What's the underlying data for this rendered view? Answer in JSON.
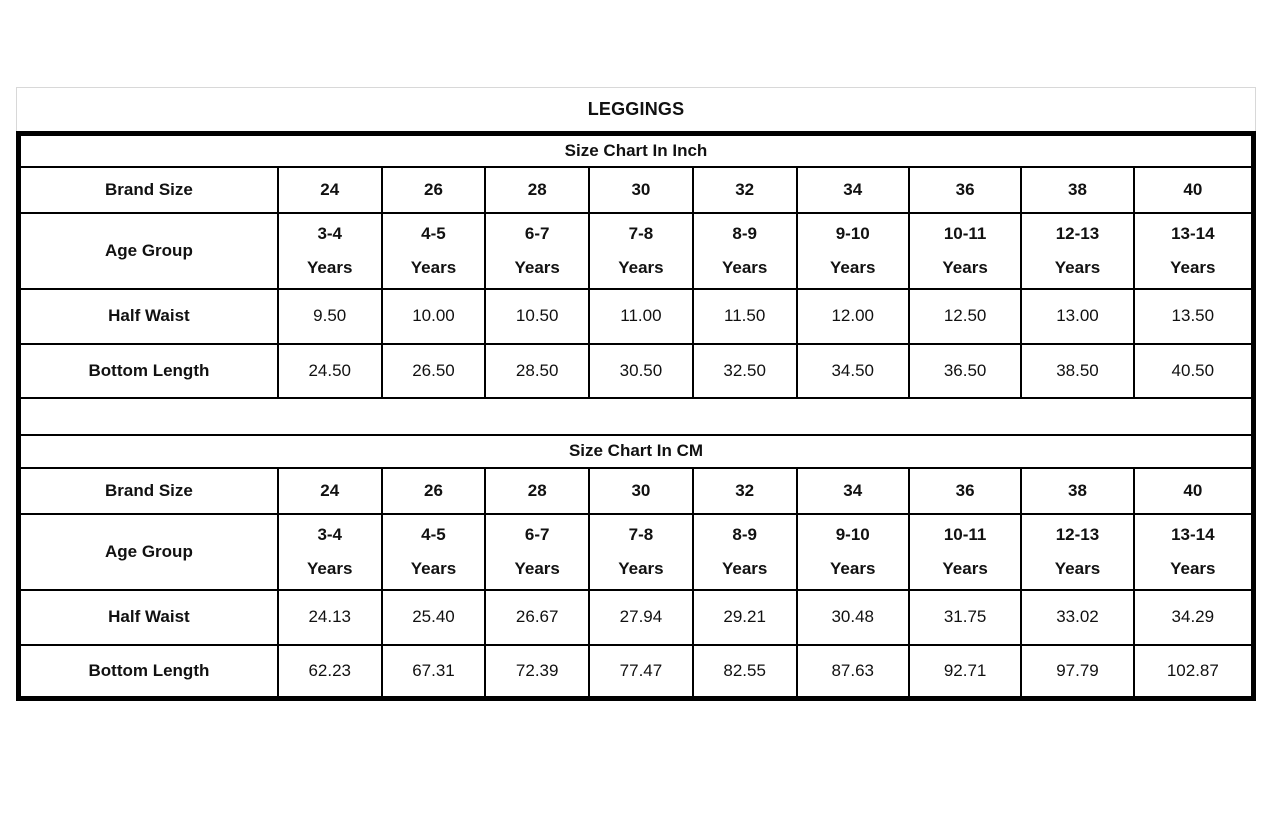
{
  "page_title": "LEGGINGS",
  "colors": {
    "background": "#ffffff",
    "text": "#111111",
    "table_border_thick": "#000000",
    "table_border_thin": "#000000",
    "title_box_border": "#d8d8d8"
  },
  "sections": [
    {
      "title": "Size Chart In Inch",
      "rows": [
        {
          "kind": "brand-size",
          "label": "Brand Size",
          "cells": [
            "24",
            "26",
            "28",
            "30",
            "32",
            "34",
            "36",
            "38",
            "40"
          ]
        },
        {
          "kind": "age-group",
          "label": "Age Group",
          "cells": [
            "3-4\nYears",
            "4-5\nYears",
            "6-7\nYears",
            "7-8\nYears",
            "8-9\nYears",
            "9-10\nYears",
            "10-11\nYears",
            "12-13\nYears",
            "13-14\nYears"
          ]
        },
        {
          "kind": "half-waist",
          "label": "Half Waist",
          "cells": [
            "9.50",
            "10.00",
            "10.50",
            "11.00",
            "11.50",
            "12.00",
            "12.50",
            "13.00",
            "13.50"
          ]
        },
        {
          "kind": "bottom-length",
          "label": "Bottom Length",
          "cells": [
            "24.50",
            "26.50",
            "28.50",
            "30.50",
            "32.50",
            "34.50",
            "36.50",
            "38.50",
            "40.50"
          ]
        }
      ]
    },
    {
      "title": "Size Chart In CM",
      "rows": [
        {
          "kind": "brand-size",
          "label": "Brand Size",
          "cells": [
            "24",
            "26",
            "28",
            "30",
            "32",
            "34",
            "36",
            "38",
            "40"
          ]
        },
        {
          "kind": "age-group",
          "label": "Age Group",
          "cells": [
            "3-4\nYears",
            "4-5\nYears",
            "6-7\nYears",
            "7-8\nYears",
            "8-9\nYears",
            "9-10\nYears",
            "10-11\nYears",
            "12-13\nYears",
            "13-14\nYears"
          ]
        },
        {
          "kind": "half-waist",
          "label": "Half Waist",
          "cells": [
            "24.13",
            "25.40",
            "26.67",
            "27.94",
            "29.21",
            "30.48",
            "31.75",
            "33.02",
            "34.29"
          ]
        },
        {
          "kind": "bottom-length",
          "label": "Bottom Length",
          "cells": [
            "62.23",
            "67.31",
            "72.39",
            "77.47",
            "82.55",
            "87.63",
            "92.71",
            "97.79",
            "102.87"
          ]
        }
      ]
    }
  ]
}
